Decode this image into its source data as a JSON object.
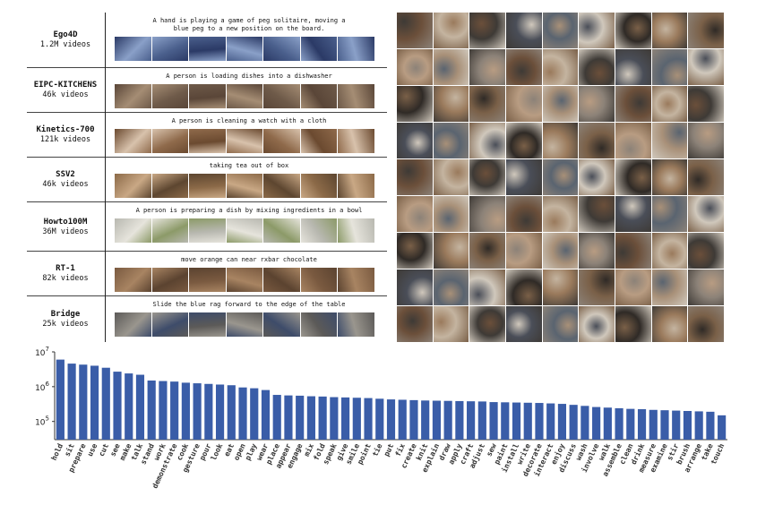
{
  "datasets": [
    {
      "name": "Ego4D",
      "count": "1.2M videos",
      "caption_lines": [
        "A hand is playing a game of peg solitaire, moving a",
        "blue peg to a new position on the board."
      ],
      "palette": [
        "#2b3a66",
        "#8aa0c8",
        "#4a5f8c"
      ]
    },
    {
      "name": "EIPC-KITCHENS",
      "count": "46k videos",
      "caption_lines": [
        "A person is loading dishes into a dishwasher"
      ],
      "palette": [
        "#5a4638",
        "#a58d74",
        "#6e5a49"
      ]
    },
    {
      "name": "Kinetics-700",
      "count": "121k videos",
      "caption_lines": [
        "A person is cleaning a watch with a cloth"
      ],
      "palette": [
        "#6b4a30",
        "#d8c2ac",
        "#8f6a4b"
      ]
    },
    {
      "name": "SSV2",
      "count": "46k videos",
      "caption_lines": [
        "taking tea out of box"
      ],
      "palette": [
        "#8c6a48",
        "#c9a885",
        "#5d4630"
      ]
    },
    {
      "name": "Howto100M",
      "count": "36M videos",
      "caption_lines": [
        "A person is preparing a dish by mixing ingredients in a bowl"
      ],
      "palette": [
        "#b8b8b0",
        "#e6e4dc",
        "#8c9a68"
      ]
    },
    {
      "name": "RT-1",
      "count": "82k videos",
      "caption_lines": [
        "move orange can near rxbar chocolate"
      ],
      "palette": [
        "#7a5a40",
        "#a88462",
        "#5b4330"
      ]
    },
    {
      "name": "Bridge",
      "count": "25k videos",
      "caption_lines": [
        "Slide the blue rag forward to the edge of the table"
      ],
      "palette": [
        "#5c5a58",
        "#9a968e",
        "#3e4c6a"
      ]
    }
  ],
  "mosaic": {
    "rows": 9,
    "cols": 9,
    "palette": [
      "#6b4f3a",
      "#9a7a5c",
      "#3e3a36",
      "#b89c82",
      "#5a6470",
      "#8c8278",
      "#2f2a26",
      "#c4b4a0",
      "#7a6048",
      "#4a4e58",
      "#a89078",
      "#d0c8bc"
    ]
  },
  "chart_data": {
    "type": "bar",
    "log_scale": true,
    "ylim": [
      30000,
      10000000
    ],
    "yticks": [
      {
        "value": 10000000,
        "base": "10",
        "exp": "7"
      },
      {
        "value": 1000000,
        "base": "10",
        "exp": "6"
      },
      {
        "value": 100000,
        "base": "10",
        "exp": "5"
      }
    ],
    "bar_color": "#3a5da8",
    "categories": [
      "hold",
      "sit",
      "prepare",
      "use",
      "cut",
      "see",
      "make",
      "talk",
      "stand",
      "work",
      "demonstrate",
      "cook",
      "gesture",
      "pour",
      "look",
      "eat",
      "open",
      "play",
      "wear",
      "place",
      "appear",
      "engage",
      "mix",
      "fold",
      "speak",
      "give",
      "smile",
      "point",
      "tie",
      "put",
      "fix",
      "create",
      "knit",
      "explain",
      "draw",
      "apply",
      "craft",
      "adjust",
      "sew",
      "paint",
      "install",
      "write",
      "decorate",
      "interact",
      "enjoy",
      "discuss",
      "wash",
      "involve",
      "walk",
      "assemble",
      "clean",
      "drink",
      "measure",
      "examine",
      "stir",
      "brush",
      "arrange",
      "take",
      "touch"
    ],
    "values": [
      6000000,
      4600000,
      4300000,
      4000000,
      3500000,
      2700000,
      2400000,
      2200000,
      1500000,
      1450000,
      1400000,
      1300000,
      1250000,
      1200000,
      1150000,
      1100000,
      950000,
      900000,
      800000,
      580000,
      560000,
      550000,
      530000,
      520000,
      500000,
      490000,
      480000,
      470000,
      450000,
      430000,
      420000,
      410000,
      400000,
      395000,
      390000,
      385000,
      380000,
      375000,
      360000,
      355000,
      350000,
      345000,
      340000,
      330000,
      320000,
      300000,
      280000,
      260000,
      250000,
      240000,
      230000,
      225000,
      215000,
      210000,
      205000,
      200000,
      195000,
      190000,
      150000
    ]
  }
}
